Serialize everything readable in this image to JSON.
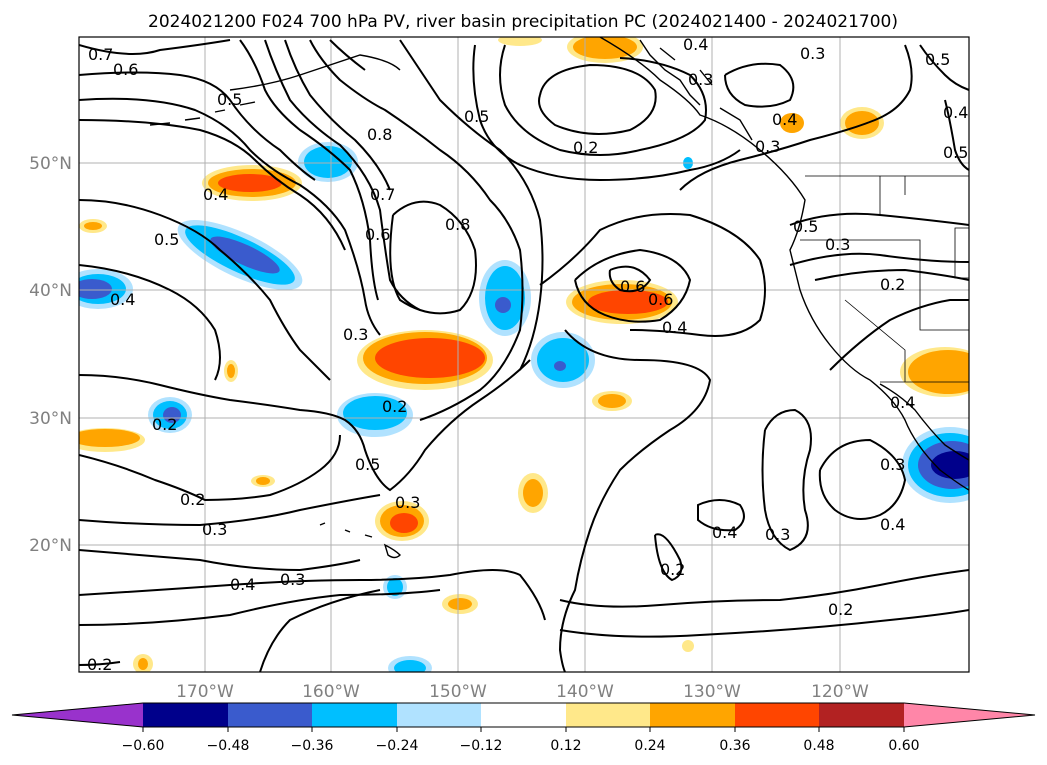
{
  "title": "2024021200 F024 700 hPa PV, river basin precipitation PC (2024021400 - 2024021700)",
  "lat_labels": [
    "50°N",
    "40°N",
    "30°N",
    "20°N"
  ],
  "lon_labels": [
    "170°W",
    "160°W",
    "150°W",
    "140°W",
    "130°W",
    "120°W"
  ],
  "colorbar": {
    "ticks": [
      "−0.60",
      "−0.48",
      "−0.36",
      "−0.24",
      "−0.12",
      "0.12",
      "0.24",
      "0.36",
      "0.48",
      "0.60"
    ],
    "colors": [
      "#9932cc",
      "#00008b",
      "#3a5bcd",
      "#00bfff",
      "#b0e2ff",
      "#ffffff",
      "#ffe88a",
      "#ffa500",
      "#ff4500",
      "#b22222",
      "#ff86a8"
    ]
  },
  "contour_labels": [
    "0.7",
    "0.6",
    "0.4",
    "0.3",
    "0.5",
    "0.2",
    "0.3",
    "0.8",
    "0.7",
    "0.6",
    "0.5",
    "0.4",
    "0.4",
    "0.8",
    "0.5",
    "0.3",
    "0.6",
    "0.6",
    "0.4",
    "0.3",
    "0.5",
    "0.4",
    "0.2",
    "0.3",
    "0.2",
    "0.2",
    "0.5",
    "0.3",
    "0.2",
    "0.3",
    "0.4",
    "0.3",
    "0.4",
    "0.2",
    "0.2",
    "0.4",
    "0.2",
    "0.3",
    "0.3",
    "0.4",
    "0.5",
    "0.4",
    "0.5"
  ],
  "chart_data": {
    "type": "map",
    "field_contours": "700 hPa PV",
    "field_shaded": "river basin precipitation PC",
    "lon_range": [
      -180,
      -110
    ],
    "lat_range": [
      10,
      60
    ],
    "colorbar_levels": [
      -0.6,
      -0.48,
      -0.36,
      -0.24,
      -0.12,
      0.12,
      0.24,
      0.36,
      0.48,
      0.6
    ],
    "grid": true
  }
}
